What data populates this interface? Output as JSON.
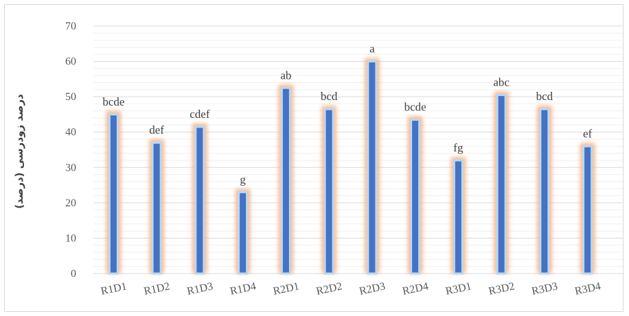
{
  "chart_data": {
    "type": "bar",
    "categories": [
      "R1D1",
      "R1D2",
      "R1D3",
      "R1D4",
      "R2D1",
      "R2D2",
      "R2D3",
      "R2D4",
      "R3D1",
      "R3D2",
      "R3D3",
      "R3D4"
    ],
    "values": [
      45,
      37,
      41.5,
      23,
      52.5,
      46.5,
      60,
      43.5,
      32,
      50.5,
      46.5,
      36
    ],
    "data_labels": [
      "bcde",
      "def",
      "cdef",
      "g",
      "ab",
      "bcd",
      "a",
      "bcde",
      "fg",
      "abc",
      "bcd",
      "ef"
    ],
    "ylabel": "درصد زودرسی (درصد)",
    "ylim": [
      0,
      70
    ],
    "yticks": [
      0,
      10,
      20,
      30,
      40,
      50,
      60,
      70
    ],
    "grid": true,
    "bar_color": "#4472c4",
    "bar_border_color": "#bdd7ee",
    "glow_color": "#f4b183"
  }
}
